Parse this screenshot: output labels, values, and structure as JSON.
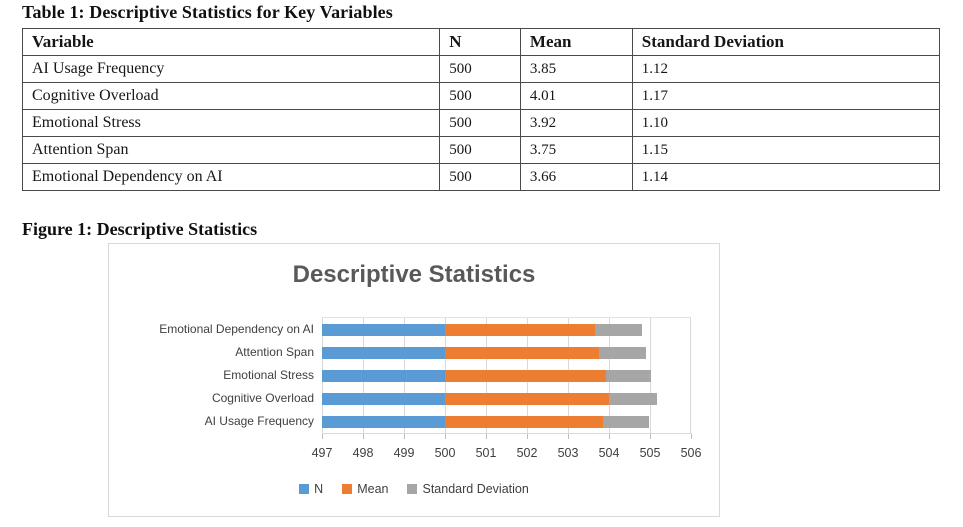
{
  "table": {
    "title": "Table 1: Descriptive Statistics for Key Variables",
    "headers": [
      "Variable",
      "N",
      "Mean",
      "Standard Deviation"
    ],
    "rows": [
      [
        "AI Usage Frequency",
        "500",
        "3.85",
        "1.12"
      ],
      [
        "Cognitive Overload",
        "500",
        "4.01",
        "1.17"
      ],
      [
        "Emotional Stress",
        "500",
        "3.92",
        "1.10"
      ],
      [
        "Attention Span",
        "500",
        "3.75",
        "1.15"
      ],
      [
        "Emotional Dependency on AI",
        "500",
        "3.66",
        "1.14"
      ]
    ]
  },
  "figure": {
    "caption": "Figure 1: Descriptive Statistics"
  },
  "chart_data": {
    "type": "bar",
    "orientation": "horizontal",
    "stacked": true,
    "title": "Descriptive Statistics",
    "title_color": "#595959",
    "categories_top_to_bottom": [
      "Emotional Dependency on AI",
      "Attention Span",
      "Emotional Stress",
      "Cognitive Overload",
      "AI Usage Frequency"
    ],
    "series": [
      {
        "name": "N",
        "color": "#5B9BD5",
        "values": [
          500,
          500,
          500,
          500,
          500
        ]
      },
      {
        "name": "Mean",
        "color": "#ED7D31",
        "values": [
          3.66,
          3.75,
          3.92,
          4.01,
          3.85
        ]
      },
      {
        "name": "Standard Deviation",
        "color": "#A6A6A6",
        "values": [
          1.14,
          1.15,
          1.1,
          1.17,
          1.12
        ]
      }
    ],
    "x_axis": {
      "min": 497,
      "max": 506,
      "ticks": [
        "497",
        "498",
        "499",
        "500",
        "501",
        "502",
        "503",
        "504",
        "505",
        "506"
      ]
    },
    "grid": true,
    "gridline_color": "#d9d9d9",
    "legend_position": "bottom",
    "legend": [
      "N",
      "Mean",
      "Standard Deviation"
    ]
  }
}
